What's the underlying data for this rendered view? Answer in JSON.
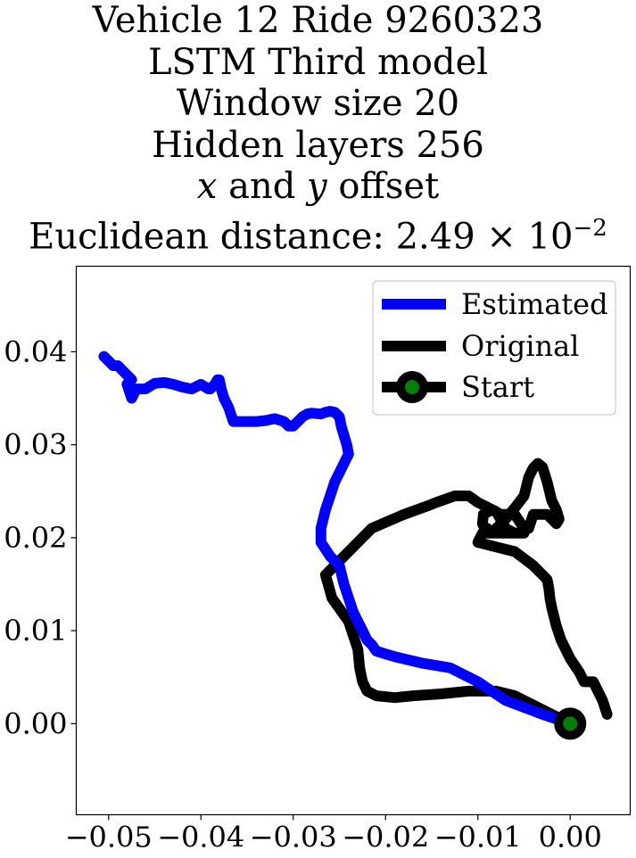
{
  "title": {
    "line1": "Vehicle 12 Ride 9260323",
    "line2": "LSTM Third model",
    "line3": "Window size 20",
    "line4": "Hidden layers 256",
    "line5_var_x": "x",
    "line5_and": " and ",
    "line5_var_y": "y",
    "line5_rest": " offset",
    "line6_prefix": "Euclidean distance: 2.49",
    "line6_times": " × 10",
    "line6_exp": "−2"
  },
  "chart_data": {
    "type": "line",
    "xlim": [
      -0.0535,
      0.0065
    ],
    "ylim": [
      -0.0098,
      0.0492
    ],
    "xticks": [
      -0.05,
      -0.04,
      -0.03,
      -0.02,
      -0.01,
      0.0
    ],
    "xtick_labels": [
      "−0.05",
      "−0.04",
      "−0.03",
      "−0.02",
      "−0.01",
      "0.00"
    ],
    "yticks": [
      0.0,
      0.01,
      0.02,
      0.03,
      0.04
    ],
    "ytick_labels": [
      "0.00",
      "0.01",
      "0.02",
      "0.03",
      "0.04"
    ],
    "grid": false,
    "legend_position": "top-right",
    "series": [
      {
        "name": "Estimated",
        "color": "#0000ff",
        "x": [
          0.0,
          -0.003,
          -0.007,
          -0.01,
          -0.013,
          -0.016,
          -0.019,
          -0.02,
          -0.021,
          -0.0215,
          -0.022,
          -0.0225,
          -0.023,
          -0.0235,
          -0.024,
          -0.0245,
          -0.025,
          -0.026,
          -0.027,
          -0.027,
          -0.0265,
          -0.026,
          -0.0255,
          -0.025,
          -0.0245,
          -0.024,
          -0.0242,
          -0.0245,
          -0.0248,
          -0.025,
          -0.0253,
          -0.0255,
          -0.026,
          -0.0265,
          -0.027,
          -0.028,
          -0.0285,
          -0.029,
          -0.03,
          -0.0305,
          -0.031,
          -0.032,
          -0.033,
          -0.034,
          -0.035,
          -0.0365,
          -0.037,
          -0.0375,
          -0.0378,
          -0.038,
          -0.0382,
          -0.0385,
          -0.039,
          -0.0392,
          -0.04,
          -0.041,
          -0.042,
          -0.043,
          -0.044,
          -0.045,
          -0.046,
          -0.047,
          -0.0475,
          -0.048,
          -0.0475,
          -0.048,
          -0.0485,
          -0.049,
          -0.0495,
          -0.05,
          -0.0505
        ],
        "y": [
          0.0,
          0.001,
          0.0025,
          0.0045,
          0.006,
          0.0065,
          0.0072,
          0.0075,
          0.0078,
          0.0085,
          0.009,
          0.01,
          0.011,
          0.012,
          0.0135,
          0.015,
          0.017,
          0.018,
          0.0195,
          0.021,
          0.023,
          0.0245,
          0.026,
          0.027,
          0.028,
          0.029,
          0.03,
          0.031,
          0.032,
          0.033,
          0.0333,
          0.0335,
          0.0336,
          0.0335,
          0.0333,
          0.0334,
          0.0333,
          0.033,
          0.032,
          0.032,
          0.0325,
          0.0328,
          0.0326,
          0.0325,
          0.0325,
          0.0325,
          0.034,
          0.035,
          0.036,
          0.037,
          0.037,
          0.0365,
          0.036,
          0.036,
          0.0365,
          0.036,
          0.0362,
          0.0365,
          0.0367,
          0.0366,
          0.036,
          0.036,
          0.035,
          0.0365,
          0.037,
          0.0375,
          0.038,
          0.0385,
          0.0385,
          0.039,
          0.0395
        ]
      },
      {
        "name": "Original",
        "color": "#000000",
        "x": [
          0.004,
          0.0035,
          0.0025,
          0.0015,
          0.001,
          0.0,
          -0.001,
          -0.0015,
          -0.002,
          -0.0022,
          -0.0023,
          -0.0025,
          -0.004,
          -0.006,
          -0.008,
          -0.01,
          -0.0095,
          -0.009,
          -0.0085,
          -0.008,
          -0.007,
          -0.006,
          -0.005,
          -0.0045,
          -0.004,
          -0.0035,
          -0.003,
          -0.0025,
          -0.002,
          -0.0015,
          -0.0012,
          -0.0015,
          -0.0025,
          -0.004,
          -0.0045,
          -0.0055,
          -0.0065,
          -0.0075,
          -0.009,
          -0.0095,
          -0.0094,
          -0.0085,
          -0.0075,
          -0.006,
          -0.005,
          -0.005,
          -0.0055,
          -0.006,
          -0.007,
          -0.008,
          -0.01,
          -0.011,
          -0.0125,
          -0.0145,
          -0.0155,
          -0.018,
          -0.0215,
          -0.0235,
          -0.025,
          -0.0265,
          -0.0258,
          -0.024,
          -0.0235,
          -0.023,
          -0.0228,
          -0.0225,
          -0.022,
          -0.021,
          -0.019,
          -0.017,
          -0.014,
          -0.011,
          -0.008,
          -0.006,
          -0.004,
          -0.002,
          0.0
        ],
        "y": [
          0.001,
          0.0025,
          0.0045,
          0.0045,
          0.0055,
          0.007,
          0.009,
          0.0105,
          0.0125,
          0.0135,
          0.0145,
          0.0155,
          0.017,
          0.0185,
          0.019,
          0.0195,
          0.0205,
          0.021,
          0.0205,
          0.021,
          0.022,
          0.0232,
          0.0245,
          0.0265,
          0.0275,
          0.028,
          0.0276,
          0.026,
          0.024,
          0.023,
          0.022,
          0.0215,
          0.0225,
          0.0225,
          0.021,
          0.0205,
          0.0205,
          0.0205,
          0.0205,
          0.0215,
          0.0225,
          0.023,
          0.0225,
          0.0225,
          0.021,
          0.0205,
          0.0205,
          0.0205,
          0.021,
          0.0228,
          0.0238,
          0.0245,
          0.0245,
          0.0238,
          0.0234,
          0.0225,
          0.021,
          0.019,
          0.0175,
          0.016,
          0.0135,
          0.011,
          0.0095,
          0.008,
          0.006,
          0.0045,
          0.0035,
          0.003,
          0.0028,
          0.003,
          0.0032,
          0.0035,
          0.0035,
          0.003,
          0.002,
          0.001,
          0.0
        ]
      },
      {
        "name": "Start",
        "color": "#000000",
        "marker_face_color": "#008000",
        "x": [
          0.0
        ],
        "y": [
          0.0
        ]
      }
    ]
  }
}
